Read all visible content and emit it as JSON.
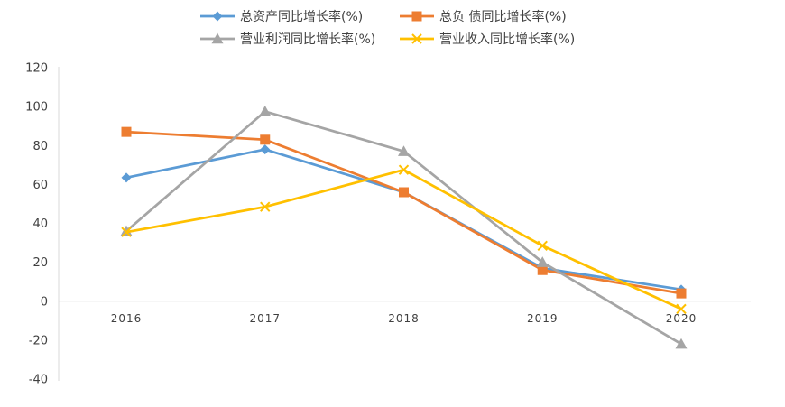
{
  "chart_data": {
    "type": "line",
    "title": "",
    "xlabel": "",
    "ylabel": "",
    "categories": [
      "2016",
      "2017",
      "2018",
      "2019",
      "2020"
    ],
    "ylim": [
      -40,
      120
    ],
    "yticks": [
      120,
      100,
      80,
      60,
      40,
      20,
      0,
      -20,
      -40
    ],
    "grid": false,
    "legend_position": "top",
    "series": [
      {
        "name": "总资产同比增长率(%)",
        "color": "#5B9BD5",
        "marker": "diamond",
        "values": [
          63.5,
          78,
          56,
          17,
          6
        ]
      },
      {
        "name": "总负 债同比增长率(%)",
        "color": "#ED7D31",
        "marker": "square",
        "values": [
          87,
          83,
          56,
          16,
          4
        ]
      },
      {
        "name": "营业利润同比增长率(%)",
        "color": "#A5A5A5",
        "marker": "triangle",
        "values": [
          36,
          97.5,
          77,
          20,
          -22
        ]
      },
      {
        "name": "营业收入同比增长率(%)",
        "color": "#FFC000",
        "marker": "x",
        "values": [
          35.5,
          48.5,
          67.5,
          28.5,
          -4
        ]
      }
    ]
  }
}
